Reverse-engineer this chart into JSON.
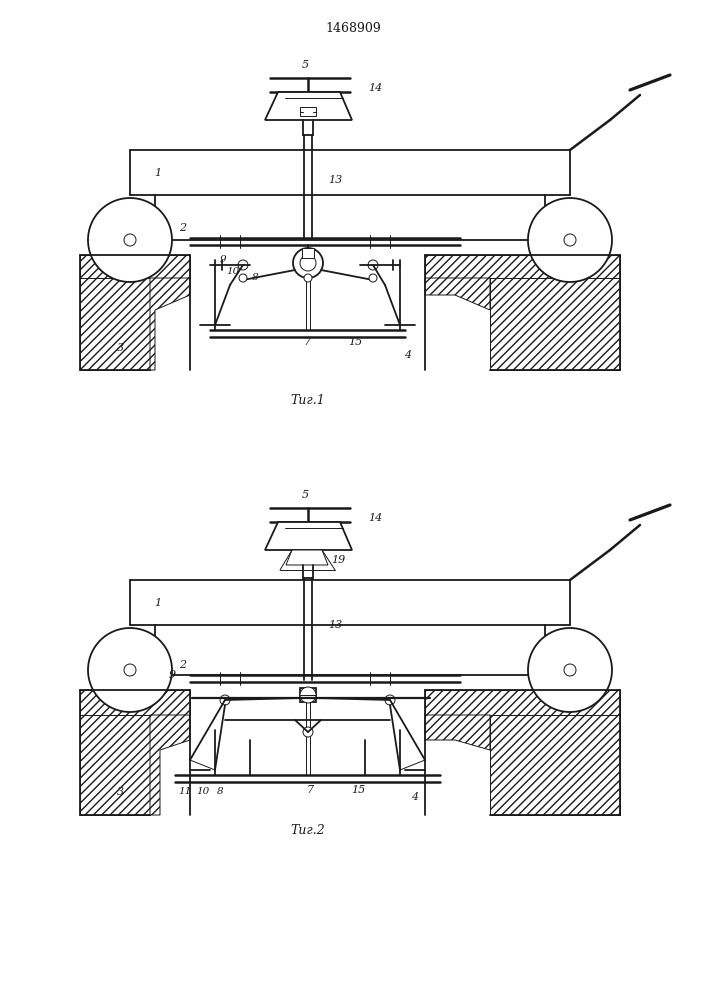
{
  "title": "1468909",
  "bg_color": "#ffffff",
  "line_color": "#1a1a1a",
  "lw": 1.3,
  "tlw": 0.7,
  "fig1_caption": "Τиг.1",
  "fig2_caption": "Τиг.2"
}
